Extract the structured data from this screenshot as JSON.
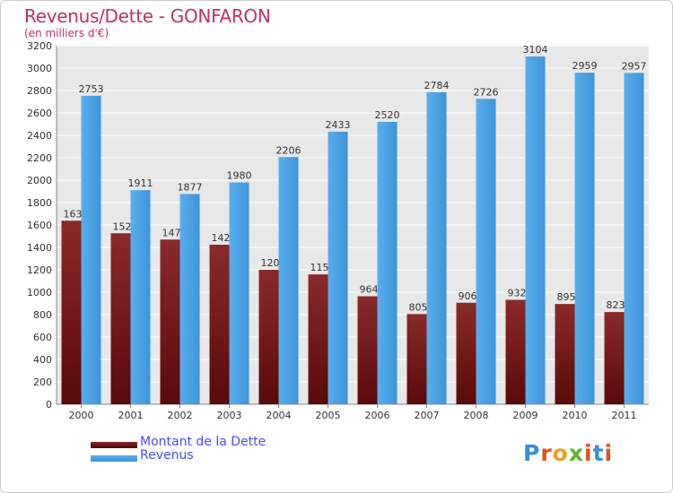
{
  "title": "Revenus/Dette - GONFARON",
  "subtitle": "(en milliers d'€)",
  "brand": {
    "text": "Proxiti",
    "colors": [
      "#3a8fd9",
      "#e0531f",
      "#f0a01c",
      "#5ab52c",
      "#e0531f",
      "#3a8fd9",
      "#e0531f"
    ]
  },
  "chart_data": {
    "type": "bar",
    "title": "Revenus/Dette - GONFARON",
    "subtitle": "(en milliers d'€)",
    "categories": [
      "2000",
      "2001",
      "2002",
      "2003",
      "2004",
      "2005",
      "2006",
      "2007",
      "2008",
      "2009",
      "2010",
      "2011"
    ],
    "series": [
      {
        "name": "Montant de la Dette",
        "color": "#7a1a1a",
        "values": [
          1638,
          1526,
          1470,
          1424,
          1200,
          1159,
          964,
          805,
          906,
          932,
          895,
          823
        ],
        "labels": [
          "1638",
          "1526",
          "1470",
          "1424",
          "1200",
          "1159",
          "964",
          "805",
          "906",
          "932",
          "895",
          "823"
        ]
      },
      {
        "name": "Revenus",
        "color": "#4aa3e8",
        "values": [
          2753,
          1911,
          1877,
          1980,
          2206,
          2433,
          2520,
          2784,
          2726,
          3104,
          2959,
          2957
        ],
        "labels": [
          "2753",
          "1911",
          "1877",
          "1980",
          "2206",
          "2433",
          "2520",
          "2784",
          "2726",
          "3104",
          "2959",
          "2957"
        ]
      }
    ],
    "ylim": [
      0,
      3200
    ],
    "yticks": [
      0,
      200,
      400,
      600,
      800,
      1000,
      1200,
      1400,
      1600,
      1800,
      2000,
      2200,
      2400,
      2600,
      2800,
      3000,
      3200
    ],
    "grid": true,
    "legend": "bottom-left"
  }
}
